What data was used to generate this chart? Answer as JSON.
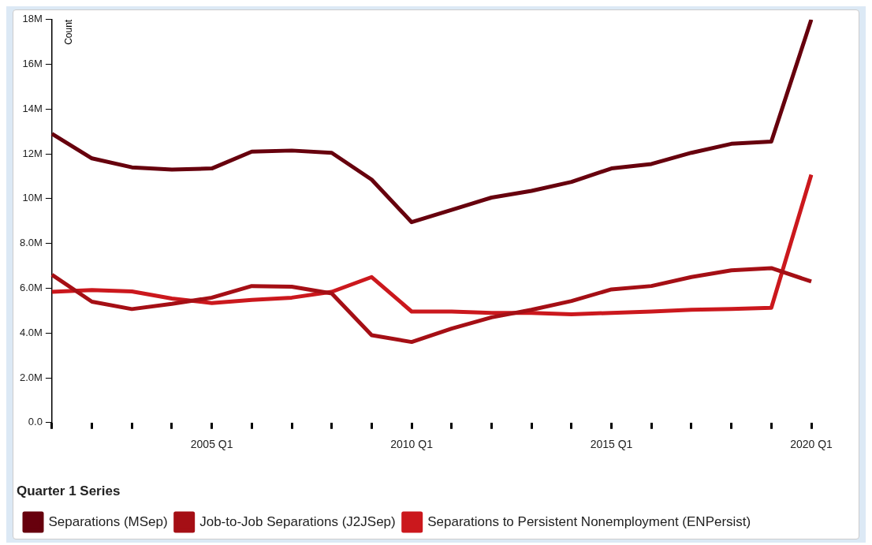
{
  "chart_data": {
    "type": "line",
    "ylabel": "Count",
    "legend_title": "Quarter 1 Series",
    "legend": "bottom",
    "grid": false,
    "marker": "none",
    "line_style": "solid",
    "categories": [
      null,
      null,
      null,
      null,
      "2005 Q1",
      null,
      null,
      null,
      null,
      "2010 Q1",
      null,
      null,
      null,
      null,
      "2015 Q1",
      null,
      null,
      null,
      null,
      "2020 Q1"
    ],
    "ylim": [
      0,
      18000000
    ],
    "yticks": [
      {
        "value": 0,
        "label": "0.0"
      },
      {
        "value": 2000000,
        "label": "2.0M"
      },
      {
        "value": 4000000,
        "label": "4.0M"
      },
      {
        "value": 6000000,
        "label": "6.0M"
      },
      {
        "value": 8000000,
        "label": "8.0M"
      },
      {
        "value": 10000000,
        "label": "10M"
      },
      {
        "value": 12000000,
        "label": "12M"
      },
      {
        "value": 14000000,
        "label": "14M"
      },
      {
        "value": 16000000,
        "label": "16M"
      },
      {
        "value": 18000000,
        "label": "18M"
      }
    ],
    "series": [
      {
        "name": "Separations (MSep)",
        "color": "#67000d",
        "values": [
          12900000,
          11800000,
          11400000,
          11300000,
          11350000,
          12100000,
          12150000,
          12050000,
          10850000,
          8950000,
          9500000,
          10050000,
          10350000,
          10750000,
          11350000,
          11550000,
          12050000,
          12450000,
          12550000,
          18000000
        ]
      },
      {
        "name": "Job-to-Job Separations (J2JSep)",
        "color": "#a50f15",
        "values": [
          6600000,
          5400000,
          5070000,
          5300000,
          5580000,
          6100000,
          6070000,
          5770000,
          3900000,
          3600000,
          4200000,
          4700000,
          5040000,
          5430000,
          5950000,
          6100000,
          6500000,
          6800000,
          6900000,
          6300000
        ]
      },
      {
        "name": "Separations to Persistent Nonemployment (ENPersist)",
        "color": "#cb181d",
        "values": [
          5840000,
          5920000,
          5860000,
          5540000,
          5340000,
          5480000,
          5580000,
          5840000,
          6500000,
          4960000,
          4960000,
          4900000,
          4900000,
          4840000,
          4900000,
          4960000,
          5040000,
          5070000,
          5130000,
          11070000
        ]
      }
    ]
  }
}
